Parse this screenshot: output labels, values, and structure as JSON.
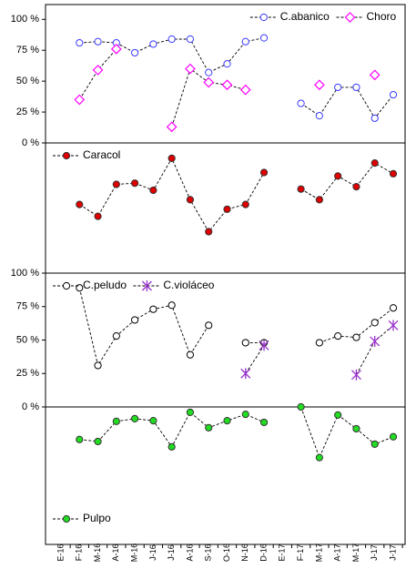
{
  "chart_data": [
    {
      "type": "line",
      "ylim": [
        0,
        112
      ],
      "yticks": [
        {
          "value": 0,
          "label": "0 %"
        },
        {
          "value": 25,
          "label": "25 %"
        },
        {
          "value": 50,
          "label": "50 %"
        },
        {
          "value": 75,
          "label": "75 %"
        },
        {
          "value": 100,
          "label": "100 %"
        }
      ],
      "legend": "upper right",
      "series": [
        {
          "name": "C.abanico",
          "color": "#3b3bff",
          "marker": "circle",
          "fill": "#ffffff",
          "values": [
            null,
            81,
            82,
            81,
            73,
            80,
            84,
            84,
            57,
            64,
            82,
            85,
            null,
            32,
            22,
            45,
            45,
            20,
            39
          ]
        },
        {
          "name": "Choro",
          "color": "#ff00ff",
          "marker": "diamond",
          "fill": "#ffffff",
          "values": [
            null,
            35,
            59,
            76,
            null,
            null,
            13,
            60,
            49,
            47,
            43,
            null,
            null,
            null,
            47,
            null,
            null,
            55,
            null
          ]
        }
      ]
    },
    {
      "type": "line",
      "ylim": [
        0,
        110
      ],
      "legend": "upper left",
      "series": [
        {
          "name": "Caracol",
          "color": "#e00000",
          "marker": "circle",
          "fill": "#e00000",
          "values": [
            null,
            58,
            48,
            75,
            76,
            70,
            97,
            62,
            35,
            54,
            58,
            85,
            null,
            71,
            62,
            82,
            73,
            93,
            84
          ]
        }
      ]
    },
    {
      "type": "line",
      "ylim": [
        0,
        100
      ],
      "yticks": [
        {
          "value": 0,
          "label": "0 %"
        },
        {
          "value": 25,
          "label": "25 %"
        },
        {
          "value": 50,
          "label": "50 %"
        },
        {
          "value": 75,
          "label": "75 %"
        },
        {
          "value": 100,
          "label": "100 %"
        }
      ],
      "legend": "upper left",
      "series": [
        {
          "name": "C.peludo",
          "color": "#000000",
          "marker": "circle",
          "fill": "#ffffff",
          "values": [
            null,
            89,
            31,
            53,
            65,
            73,
            76,
            39,
            61,
            null,
            48,
            48,
            null,
            null,
            48,
            53,
            52,
            63,
            74
          ]
        },
        {
          "name": "C.violáceo",
          "color": "#9933cc",
          "marker": "star",
          "fill": "#9933cc",
          "values": [
            null,
            null,
            null,
            null,
            null,
            null,
            null,
            null,
            null,
            null,
            25,
            46,
            null,
            null,
            null,
            null,
            24,
            49,
            61
          ]
        }
      ]
    },
    {
      "type": "line",
      "ylim": [
        0,
        41
      ],
      "y_inverted": true,
      "legend": "lower left",
      "categories": [
        "E-16",
        "F-16",
        "M-16",
        "A-16",
        "M-16",
        "J-16",
        "J-16",
        "A-16",
        "S-16",
        "O-16",
        "N-16",
        "D-16",
        "E-17",
        "F-17",
        "M-17",
        "A-17",
        "M-17",
        "J-17",
        "J-17"
      ],
      "series": [
        {
          "name": "Pulpo",
          "color": "#1a8f1a",
          "marker": "circle",
          "fill": "#22dd22",
          "values": [
            null,
            9.7,
            10.3,
            4.3,
            3.5,
            4.1,
            11.9,
            1.6,
            6.2,
            4.1,
            2.2,
            4.6,
            null,
            0,
            15.1,
            2.4,
            6.5,
            11.1,
            8.9
          ]
        }
      ]
    }
  ]
}
